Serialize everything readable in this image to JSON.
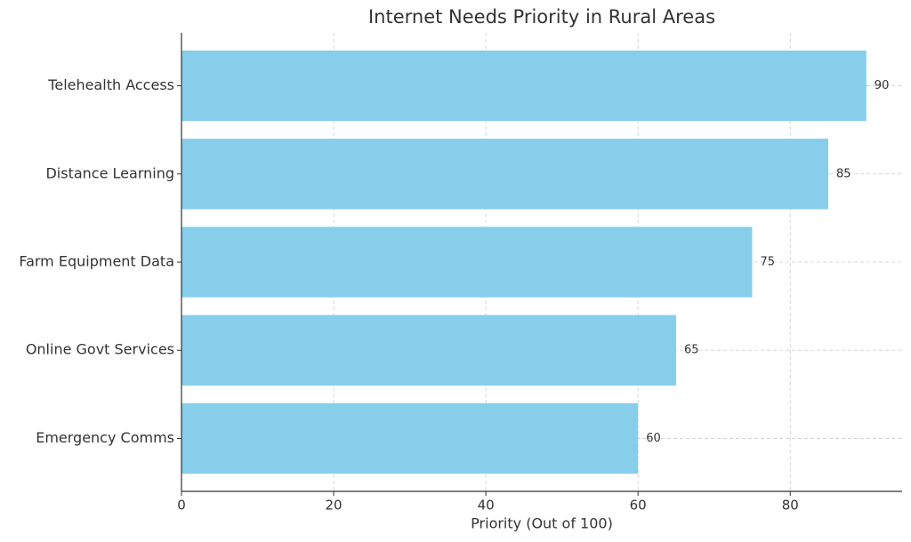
{
  "chart_data": {
    "type": "barh",
    "title": "Internet Needs Priority in Rural Areas",
    "x_label": "Priority (Out of 100)",
    "categories": [
      "Telehealth Access",
      "Distance Learning",
      "Farm Equipment Data",
      "Online Govt Services",
      "Emergency Comms"
    ],
    "values": [
      90,
      85,
      75,
      65,
      60
    ],
    "color": "#87ceeb",
    "xlim": [
      0,
      94.7
    ],
    "xticks": [
      0,
      20,
      40,
      60,
      80
    ],
    "grid": true
  }
}
